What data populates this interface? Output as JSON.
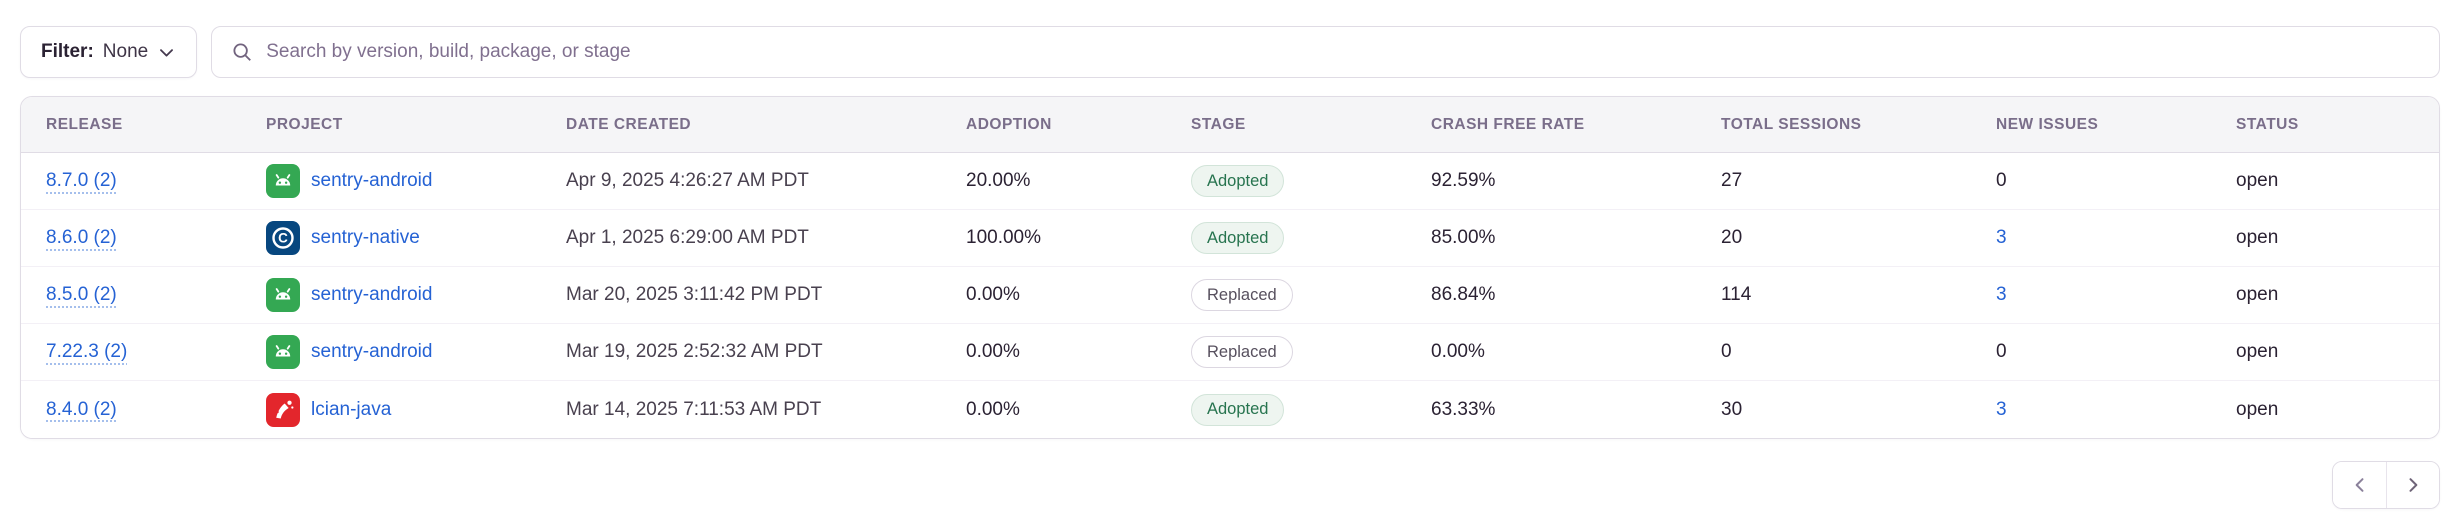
{
  "filter": {
    "label": "Filter:",
    "value": "None"
  },
  "search": {
    "placeholder": "Search by version, build, package, or stage"
  },
  "table": {
    "columns": [
      "RELEASE",
      "PROJECT",
      "DATE CREATED",
      "ADOPTION",
      "STAGE",
      "CRASH FREE RATE",
      "TOTAL SESSIONS",
      "NEW ISSUES",
      "STATUS"
    ],
    "rows": [
      {
        "release": "8.7.0 (2)",
        "project": "sentry-android",
        "platform": "android",
        "date_created": "Apr 9, 2025 4:26:27 AM PDT",
        "adoption": "20.00%",
        "stage": "Adopted",
        "crash_free_rate": "92.59%",
        "total_sessions": "27",
        "new_issues": "0",
        "status": "open"
      },
      {
        "release": "8.6.0 (2)",
        "project": "sentry-native",
        "platform": "c",
        "date_created": "Apr 1, 2025 6:29:00 AM PDT",
        "adoption": "100.00%",
        "stage": "Adopted",
        "crash_free_rate": "85.00%",
        "total_sessions": "20",
        "new_issues": "3",
        "status": "open"
      },
      {
        "release": "8.5.0 (2)",
        "project": "sentry-android",
        "platform": "android",
        "date_created": "Mar 20, 2025 3:11:42 PM PDT",
        "adoption": "0.00%",
        "stage": "Replaced",
        "crash_free_rate": "86.84%",
        "total_sessions": "114",
        "new_issues": "3",
        "status": "open"
      },
      {
        "release": "7.22.3 (2)",
        "project": "sentry-android",
        "platform": "android",
        "date_created": "Mar 19, 2025 2:52:32 AM PDT",
        "adoption": "0.00%",
        "stage": "Replaced",
        "crash_free_rate": "0.00%",
        "total_sessions": "0",
        "new_issues": "0",
        "status": "open"
      },
      {
        "release": "8.4.0 (2)",
        "project": "lcian-java",
        "platform": "java",
        "date_created": "Mar 14, 2025 7:11:53 AM PDT",
        "adoption": "0.00%",
        "stage": "Adopted",
        "crash_free_rate": "63.33%",
        "total_sessions": "30",
        "new_issues": "3",
        "status": "open"
      }
    ]
  },
  "pagination": {
    "previous": "chevron-left-icon",
    "next": "chevron-right-icon"
  },
  "colors": {
    "link_blue": "#2562d4",
    "adopted_text": "#27744f",
    "replaced_text": "#57505e",
    "header_text": "#7a6e8a",
    "android_green": "#34a853",
    "c_navy": "#07477f",
    "java_red": "#e3262c",
    "border": "#e0dce5"
  }
}
